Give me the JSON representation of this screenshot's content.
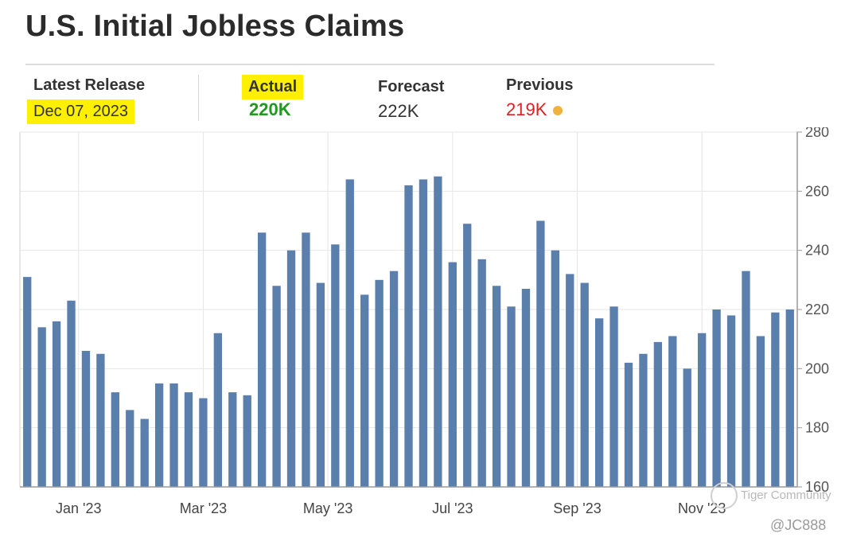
{
  "title": "U.S. Initial Jobless Claims",
  "stats": {
    "latest_release_label": "Latest Release",
    "latest_release_value": "Dec 07, 2023",
    "actual_label": "Actual",
    "actual_value": "220K",
    "forecast_label": "Forecast",
    "forecast_value": "222K",
    "previous_label": "Previous",
    "previous_value": "219K"
  },
  "colors": {
    "bar": "#5a7fad",
    "actual": "#1f9a1f",
    "previous": "#e02020",
    "highlight": "#ffef00",
    "previous_dot": "#f0b23c"
  },
  "watermark": {
    "text": "Tiger Community",
    "handle": "@JC888"
  },
  "chart_data": {
    "type": "bar",
    "title": "",
    "xlabel": "",
    "ylabel": "",
    "ylim": [
      160,
      280
    ],
    "yticks": [
      160,
      180,
      200,
      220,
      240,
      260,
      280
    ],
    "y_axis_position": "right",
    "grid": true,
    "x_tick_labels": [
      "Jan '23",
      "Mar '23",
      "May '23",
      "Jul '23",
      "Sep '23",
      "Nov '23"
    ],
    "x_tick_label_indices": [
      3.5,
      12,
      20.5,
      29,
      37.5,
      46
    ],
    "values": [
      231,
      214,
      216,
      223,
      206,
      205,
      192,
      186,
      183,
      195,
      195,
      192,
      190,
      212,
      192,
      191,
      246,
      228,
      240,
      246,
      229,
      242,
      264,
      225,
      230,
      233,
      262,
      264,
      265,
      236,
      249,
      237,
      228,
      221,
      227,
      250,
      240,
      232,
      229,
      217,
      221,
      202,
      205,
      209,
      211,
      200,
      212,
      220,
      218,
      233,
      211,
      219,
      220
    ]
  }
}
